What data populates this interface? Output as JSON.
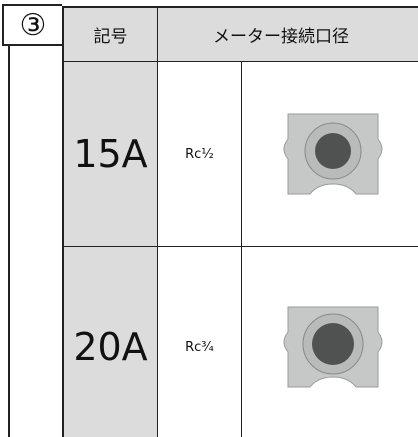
{
  "header": {
    "badge": "③"
  },
  "table": {
    "columns": [
      "記号",
      "メーター接続口径"
    ],
    "rows": [
      [
        "15A",
        "Rc¹⁄₂"
      ],
      [
        "20A",
        "Rc³⁄₄"
      ]
    ]
  }
}
